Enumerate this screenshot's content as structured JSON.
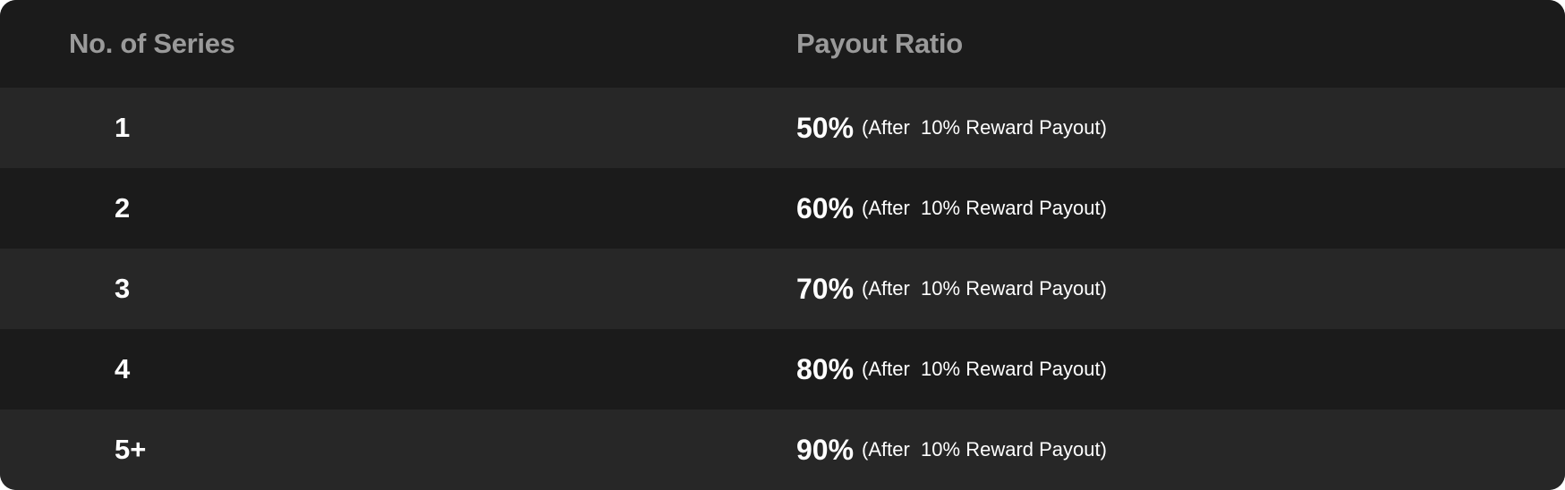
{
  "header": {
    "col1": "No. of Series",
    "col2": "Payout Ratio"
  },
  "rows": [
    {
      "series": "1",
      "ratio": "50%",
      "note": "(After  10% Reward Payout)"
    },
    {
      "series": "2",
      "ratio": "60%",
      "note": "(After  10% Reward Payout)"
    },
    {
      "series": "3",
      "ratio": "70%",
      "note": "(After  10% Reward Payout)"
    },
    {
      "series": "4",
      "ratio": "80%",
      "note": "(After  10% Reward Payout)"
    },
    {
      "series": "5+",
      "ratio": "90%",
      "note": "(After  10% Reward Payout)"
    }
  ],
  "colors": {
    "background": "#1b1b1b",
    "alt_row": "#272727",
    "header_text": "#9a9a9a",
    "text": "#ffffff"
  }
}
